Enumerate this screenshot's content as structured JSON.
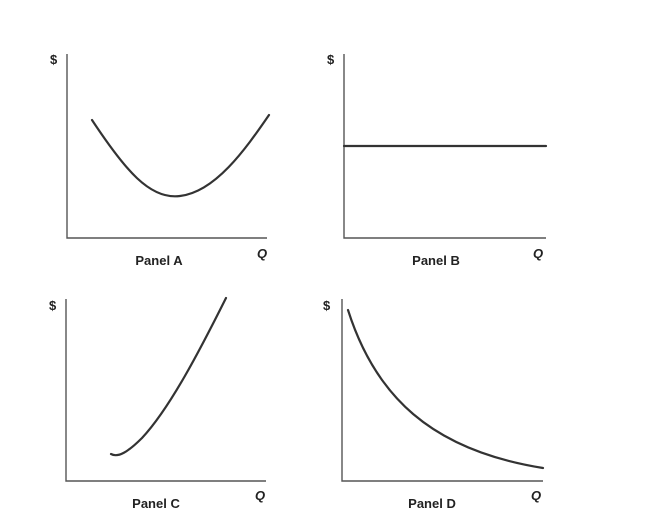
{
  "axis_labels": {
    "y": "$",
    "x": "Q"
  },
  "panels": [
    {
      "title": "Panel A",
      "curve": "u-shaped"
    },
    {
      "title": "Panel B",
      "curve": "horizontal"
    },
    {
      "title": "Panel C",
      "curve": "upward-sloping"
    },
    {
      "title": "Panel D",
      "curve": "downward-sloping-convex"
    }
  ]
}
